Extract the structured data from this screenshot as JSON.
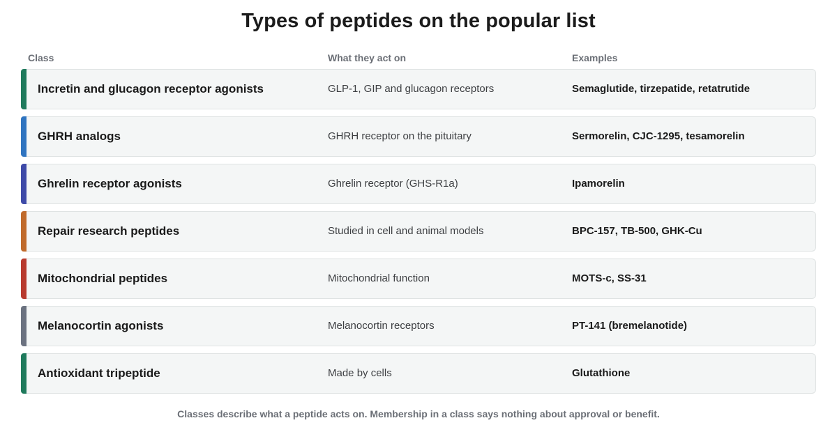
{
  "title": "Types of peptides on the popular list",
  "columns": {
    "class": "Class",
    "acts_on": "What they act on",
    "examples": "Examples"
  },
  "rows": [
    {
      "class": "Incretin and glucagon receptor agonists",
      "acts_on": "GLP-1, GIP and glucagon receptors",
      "examples": "Semaglutide, tirzepatide, retatrutide",
      "color": "#1f7a5c"
    },
    {
      "class": "GHRH analogs",
      "acts_on": "GHRH receptor on the pituitary",
      "examples": "Sermorelin, CJC-1295, tesamorelin",
      "color": "#2f74c0"
    },
    {
      "class": "Ghrelin receptor agonists",
      "acts_on": "Ghrelin receptor (GHS-R1a)",
      "examples": "Ipamorelin",
      "color": "#3e4aa8"
    },
    {
      "class": "Repair research peptides",
      "acts_on": "Studied in cell and animal models",
      "examples": "BPC-157, TB-500, GHK-Cu",
      "color": "#c06a2b"
    },
    {
      "class": "Mitochondrial peptides",
      "acts_on": "Mitochondrial function",
      "examples": "MOTS-c, SS-31",
      "color": "#b83a2e"
    },
    {
      "class": "Melanocortin agonists",
      "acts_on": "Melanocortin receptors",
      "examples": "PT-141 (bremelanotide)",
      "color": "#6b7280"
    },
    {
      "class": "Antioxidant tripeptide",
      "acts_on": "Made by cells",
      "examples": "Glutathione",
      "color": "#1f7a5c"
    }
  ],
  "footnote": "Classes describe what a peptide acts on. Membership in a class says nothing about approval or benefit."
}
